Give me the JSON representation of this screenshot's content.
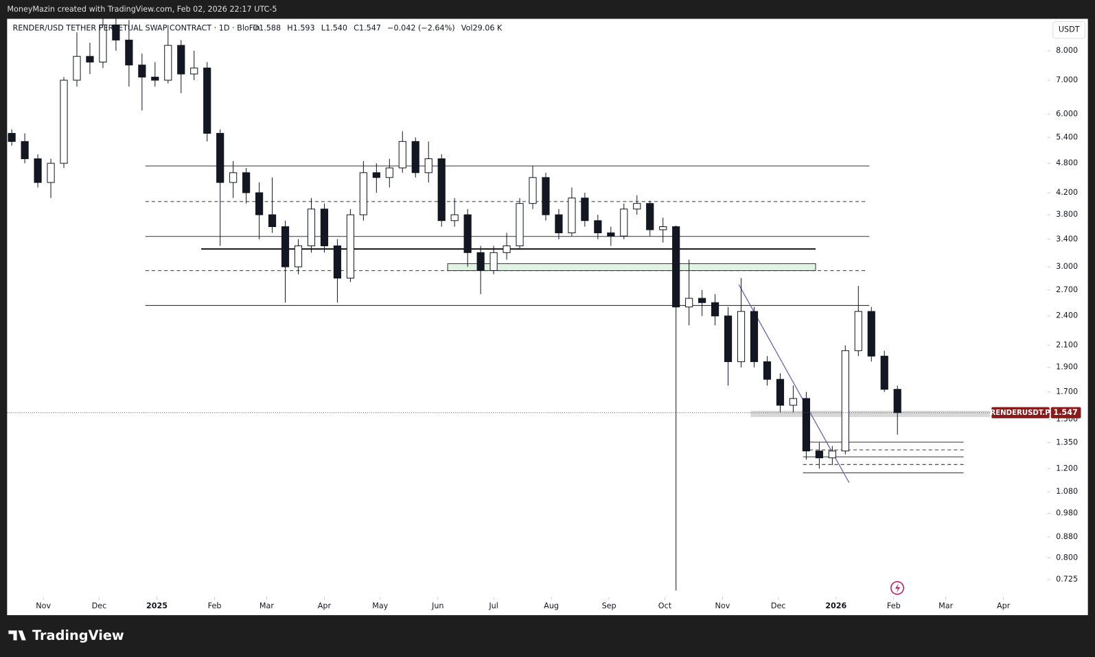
{
  "chart_data": {
    "type": "candlestick",
    "credit": "MoneyMazin created with TradingView.com, Feb 02, 2026 22:17 UTC-5",
    "title": "RENDER/USD TETHER PERPETUAL SWAP CONTRACT · 1D · BloFin",
    "ohlc_labels": [
      "O1.588",
      "H1.593",
      "L1.540",
      "C1.547",
      "−0.042 (−2.64%)",
      "Vol29.06 K"
    ],
    "currency": "USDT",
    "symbol_tag": "RENDERUSDT.P",
    "last_price": 1.547,
    "brand": "TradingView",
    "log_scale": true,
    "up_color": "#ffffff",
    "down_color": "#131722",
    "x": [
      14,
      21,
      28,
      35,
      42,
      49,
      56,
      63,
      70,
      77,
      84,
      91,
      98,
      105,
      112,
      119,
      126,
      133,
      140,
      147,
      154,
      161,
      168,
      175,
      182,
      189,
      196,
      203,
      210,
      217,
      224,
      231,
      238,
      245,
      252,
      259,
      266,
      273,
      280,
      287,
      294,
      301,
      308,
      315,
      322,
      329,
      336,
      343,
      350,
      357,
      364,
      371,
      378,
      385,
      392,
      399,
      406,
      413,
      420,
      427,
      434,
      441,
      448,
      455,
      462,
      469,
      476,
      483,
      490
    ],
    "open": [
      5.5,
      5.3,
      4.9,
      4.4,
      4.8,
      7.0,
      7.8,
      7.6,
      9.0,
      8.4,
      7.5,
      7.1,
      7.0,
      8.2,
      7.2,
      7.4,
      5.5,
      4.4,
      4.6,
      4.2,
      3.8,
      3.6,
      3.0,
      3.3,
      3.9,
      3.3,
      2.85,
      3.8,
      4.6,
      4.5,
      4.7,
      5.3,
      4.6,
      4.9,
      3.7,
      3.8,
      3.2,
      2.95,
      3.2,
      3.3,
      4.0,
      4.5,
      3.8,
      3.5,
      4.1,
      3.7,
      3.5,
      3.45,
      3.9,
      4.0,
      3.55,
      3.6,
      2.5,
      2.6,
      2.55,
      2.4,
      1.95,
      2.45,
      1.95,
      1.8,
      1.6,
      1.65,
      1.3,
      1.26,
      1.3,
      2.05,
      2.45,
      2.0,
      1.72
    ],
    "high": [
      5.6,
      5.5,
      5.0,
      4.9,
      7.1,
      8.7,
      8.3,
      9.3,
      9.3,
      9.2,
      7.9,
      7.6,
      9.0,
      8.4,
      8.0,
      7.6,
      5.6,
      4.85,
      4.7,
      4.4,
      4.5,
      3.7,
      3.4,
      4.1,
      4.0,
      3.4,
      3.9,
      4.85,
      4.8,
      4.9,
      5.55,
      5.4,
      5.3,
      5.0,
      4.1,
      3.9,
      3.3,
      3.3,
      3.5,
      4.1,
      4.75,
      4.6,
      3.9,
      4.3,
      4.2,
      3.8,
      3.6,
      4.0,
      4.15,
      4.05,
      3.75,
      3.62,
      3.1,
      2.7,
      2.65,
      2.5,
      2.85,
      2.5,
      2.0,
      1.85,
      1.75,
      1.7,
      1.35,
      1.33,
      2.1,
      2.75,
      2.5,
      2.05,
      1.75
    ],
    "low": [
      5.2,
      4.8,
      4.3,
      4.1,
      4.7,
      6.8,
      7.2,
      7.4,
      8.0,
      6.8,
      6.1,
      6.8,
      6.9,
      6.6,
      7.0,
      5.3,
      3.3,
      4.1,
      4.0,
      3.4,
      3.5,
      2.55,
      2.9,
      3.2,
      3.2,
      2.55,
      2.8,
      3.7,
      4.2,
      4.3,
      4.6,
      4.5,
      4.4,
      3.6,
      3.6,
      3.0,
      2.65,
      2.9,
      3.1,
      3.25,
      3.9,
      3.7,
      3.4,
      3.45,
      3.6,
      3.4,
      3.3,
      3.4,
      3.8,
      3.45,
      3.35,
      0.69,
      2.3,
      2.4,
      2.3,
      1.75,
      1.9,
      1.9,
      1.75,
      1.55,
      1.55,
      1.25,
      1.2,
      1.22,
      1.28,
      2.0,
      1.95,
      1.7,
      1.4
    ],
    "close": [
      5.3,
      4.9,
      4.4,
      4.8,
      7.0,
      7.8,
      7.6,
      9.0,
      8.4,
      7.5,
      7.1,
      7.0,
      8.2,
      7.2,
      7.4,
      5.5,
      4.4,
      4.6,
      4.2,
      3.8,
      3.6,
      3.0,
      3.3,
      3.9,
      3.3,
      2.85,
      3.8,
      4.6,
      4.5,
      4.7,
      5.3,
      4.6,
      4.9,
      3.7,
      3.8,
      3.2,
      2.95,
      3.2,
      3.3,
      4.0,
      4.5,
      3.8,
      3.5,
      4.1,
      3.7,
      3.5,
      3.45,
      3.9,
      4.0,
      3.55,
      3.6,
      2.5,
      2.6,
      2.55,
      2.4,
      1.95,
      2.45,
      1.95,
      1.8,
      1.6,
      1.65,
      1.3,
      1.26,
      1.3,
      2.05,
      2.45,
      2.0,
      1.72,
      1.547
    ],
    "xlim": [
      11.5,
      570.6
    ],
    "xticks": [
      {
        "value": 31,
        "label": "Nov"
      },
      {
        "value": 61,
        "label": "Dec"
      },
      {
        "value": 92,
        "label": "2025"
      },
      {
        "value": 123,
        "label": "Feb"
      },
      {
        "value": 151,
        "label": "Mar"
      },
      {
        "value": 182,
        "label": "Apr"
      },
      {
        "value": 212,
        "label": "May"
      },
      {
        "value": 243,
        "label": "Jun"
      },
      {
        "value": 273,
        "label": "Jul"
      },
      {
        "value": 304,
        "label": "Aug"
      },
      {
        "value": 335,
        "label": "Sep"
      },
      {
        "value": 365,
        "label": "Oct"
      },
      {
        "value": 396,
        "label": "Nov"
      },
      {
        "value": 426,
        "label": "Dec"
      },
      {
        "value": 457,
        "label": "2026"
      },
      {
        "value": 488,
        "label": "Feb"
      },
      {
        "value": 516,
        "label": "Mar"
      },
      {
        "value": 547,
        "label": "Apr"
      }
    ],
    "ylim": [
      0.672,
      9.25
    ],
    "yticks": [
      {
        "value": 8,
        "label": "8.000"
      },
      {
        "value": 7,
        "label": "7.000"
      },
      {
        "value": 6,
        "label": "6.000"
      },
      {
        "value": 5.4,
        "label": "5.400"
      },
      {
        "value": 4.8,
        "label": "4.800"
      },
      {
        "value": 4.2,
        "label": "4.200"
      },
      {
        "value": 3.8,
        "label": "3.800"
      },
      {
        "value": 3.4,
        "label": "3.400"
      },
      {
        "value": 3,
        "label": "3.000"
      },
      {
        "value": 2.7,
        "label": "2.700"
      },
      {
        "value": 2.4,
        "label": "2.400"
      },
      {
        "value": 2.1,
        "label": "2.100"
      },
      {
        "value": 1.9,
        "label": "1.900"
      },
      {
        "value": 1.7,
        "label": "1.700"
      },
      {
        "value": 1.5,
        "label": "1.500"
      },
      {
        "value": 1.35,
        "label": "1.350"
      },
      {
        "value": 1.2,
        "label": "1.200"
      },
      {
        "value": 1.08,
        "label": "1.080"
      },
      {
        "value": 0.98,
        "label": "0.980"
      },
      {
        "value": 0.88,
        "label": "0.880"
      },
      {
        "value": 0.8,
        "label": "0.800"
      },
      {
        "value": 0.725,
        "label": "0.725"
      }
    ]
  }
}
